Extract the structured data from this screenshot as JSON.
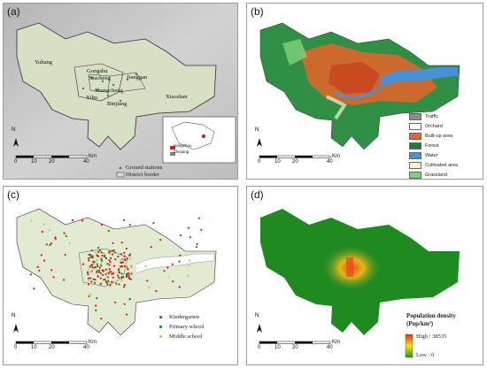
{
  "panels": {
    "a": {
      "label": "(a)",
      "districts": [
        "Yuhang",
        "Gongshu",
        "Xiacheng",
        "Jianggan",
        "Shangcheng",
        "Xihu",
        "Binjiang",
        "Xiaoshan"
      ],
      "legend": {
        "ground_stations": "Ground stations",
        "district_border": "District border"
      },
      "inset": {
        "hangzhou": "Hangzhou",
        "zhejiang": "Zhejiang"
      }
    },
    "b": {
      "label": "(b)",
      "legend": [
        {
          "label": "Traffic",
          "color": "#8c8c8c"
        },
        {
          "label": "Orchard",
          "color": "#ffffff"
        },
        {
          "label": "Built-up area",
          "color": "#e8642a"
        },
        {
          "label": "Forest",
          "color": "#1f7a3a"
        },
        {
          "label": "Water",
          "color": "#4a90d9"
        },
        {
          "label": "Cultivated area",
          "color": "#fbf3c8"
        },
        {
          "label": "Grassland",
          "color": "#7ed37a"
        }
      ]
    },
    "c": {
      "label": "(c)",
      "legend": [
        {
          "label": "Kindergarten",
          "color": "#e0161b"
        },
        {
          "label": "Primary school",
          "color": "#1a7a2a"
        },
        {
          "label": "Middle school",
          "color": "#8ee05a"
        }
      ]
    },
    "d": {
      "label": "(d)",
      "legend_title": "Population density",
      "legend_unit": "(Pop/km²)",
      "high": "High : 38535",
      "low": "Low : 0"
    }
  },
  "scalebar": {
    "ticks": [
      "0",
      "10",
      "20",
      "40"
    ],
    "unit": "Km"
  },
  "north": "N"
}
